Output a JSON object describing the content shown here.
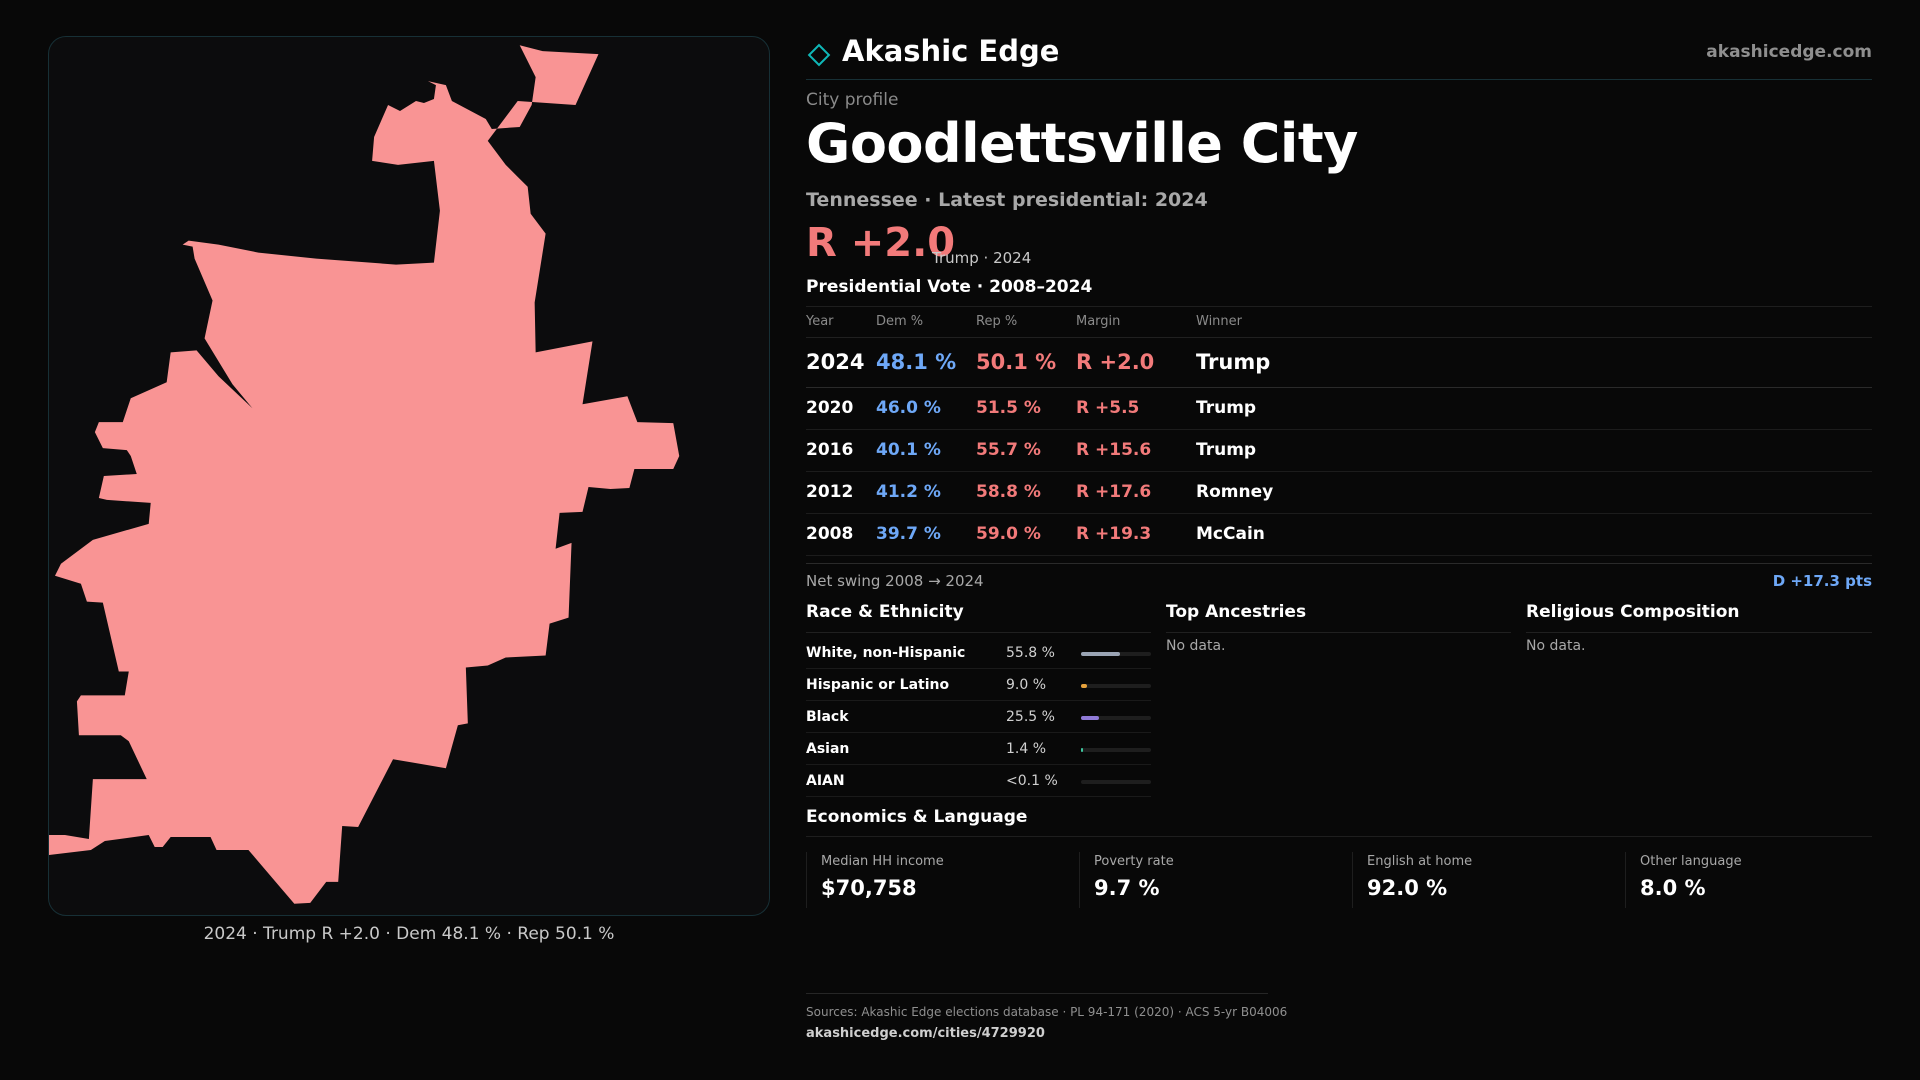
{
  "map": {
    "fill_color": "#f99494",
    "caption": "2024 · Trump R +2.0 · Dem 48.1 % · Rep 50.1 %"
  },
  "brand": {
    "name": "Akashic Edge",
    "url": "akashicedge.com",
    "logo_icon": "diamond-icon",
    "accent": "#0fb8b8"
  },
  "profile": {
    "kicker": "City profile",
    "title": "Goodlettsville City",
    "subtitle": "Tennessee · Latest presidential: 2024",
    "headline_margin": "R +2.0",
    "headline_note": "Trump · 2024"
  },
  "vote_section": {
    "title": "Presidential Vote · 2008–2024",
    "headers": [
      "Year",
      "Dem %",
      "Rep %",
      "Margin",
      "Winner"
    ],
    "rows": [
      {
        "year": "2024",
        "dem": "48.1 %",
        "rep": "50.1 %",
        "margin": "R +2.0",
        "winner": "Trump"
      },
      {
        "year": "2020",
        "dem": "46.0 %",
        "rep": "51.5 %",
        "margin": "R +5.5",
        "winner": "Trump"
      },
      {
        "year": "2016",
        "dem": "40.1 %",
        "rep": "55.7 %",
        "margin": "R +15.6",
        "winner": "Trump"
      },
      {
        "year": "2012",
        "dem": "41.2 %",
        "rep": "58.8 %",
        "margin": "R +17.6",
        "winner": "Romney"
      },
      {
        "year": "2008",
        "dem": "39.7 %",
        "rep": "59.0 %",
        "margin": "R +19.3",
        "winner": "McCain"
      }
    ],
    "swing_label": "Net swing 2008 → 2024",
    "swing_value": "D +17.3 pts"
  },
  "race": {
    "title": "Race & Ethnicity",
    "rows": [
      {
        "label": "White, non-Hispanic",
        "value": "55.8 %",
        "share": 0.558,
        "color": "#9aa4b4"
      },
      {
        "label": "Hispanic or Latino",
        "value": "9.0 %",
        "share": 0.09,
        "color": "#e6a23c"
      },
      {
        "label": "Black",
        "value": "25.5 %",
        "share": 0.255,
        "color": "#8f7ad6"
      },
      {
        "label": "Asian",
        "value": "1.4 %",
        "share": 0.014,
        "color": "#3fc7a0"
      },
      {
        "label": "AIAN",
        "value": "<0.1 %",
        "share": 0.0,
        "color": "#888888"
      }
    ]
  },
  "ancestries": {
    "title": "Top Ancestries",
    "empty": "No data."
  },
  "religion": {
    "title": "Religious Composition",
    "empty": "No data."
  },
  "economics": {
    "title": "Economics & Language",
    "stats": [
      {
        "label": "Median HH income",
        "value": "$70,758"
      },
      {
        "label": "Poverty rate",
        "value": "9.7 %"
      },
      {
        "label": "English at home",
        "value": "92.0 %"
      },
      {
        "label": "Other language",
        "value": "8.0 %"
      }
    ]
  },
  "footer": {
    "sources": "Sources: Akashic Edge elections database · PL 94-171 (2020) · ACS 5-yr B04006",
    "url": "akashicedge.com/cities/4729920"
  }
}
